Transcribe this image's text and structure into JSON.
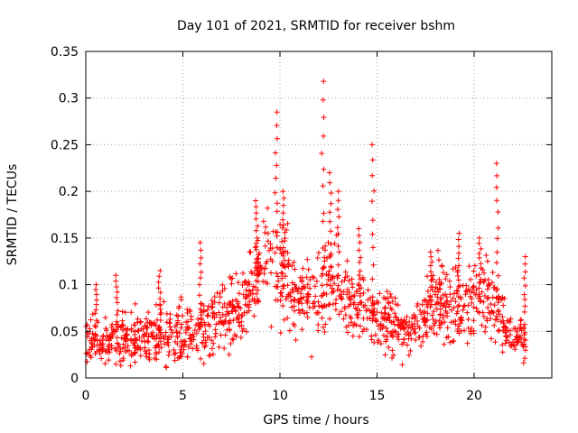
{
  "chart_data": {
    "type": "scatter",
    "title": "Day 101 of 2021, SRMTID for receiver bshm",
    "xlabel": "GPS time / hours",
    "ylabel": "SRMTID / TECUs",
    "xlim": [
      0,
      24
    ],
    "ylim": [
      0,
      0.35
    ],
    "grid": true,
    "x_ticks": [
      0,
      5,
      10,
      15,
      20
    ],
    "x_tick_labels": [
      "0",
      "5",
      "10",
      "15",
      "20"
    ],
    "y_ticks": [
      0,
      0.05,
      0.1,
      0.15,
      0.2,
      0.25,
      0.3,
      0.35
    ],
    "y_tick_labels": [
      "0",
      "0.05",
      "0.1",
      "0.15",
      "0.2",
      "0.25",
      "0.3",
      "0.35"
    ],
    "marker": "+",
    "color": "#ff0000",
    "envelope": {
      "hours": [
        0,
        1,
        2,
        3,
        4,
        5,
        6,
        7,
        8,
        8.5,
        9,
        9.5,
        10,
        10.5,
        11,
        11.5,
        12,
        12.5,
        13,
        13.5,
        14,
        14.5,
        15,
        15.5,
        16,
        16.5,
        17,
        17.5,
        18,
        18.5,
        19,
        19.5,
        20,
        20.5,
        21,
        21.5,
        22,
        22.7
      ],
      "typical": [
        0.04,
        0.038,
        0.04,
        0.045,
        0.045,
        0.05,
        0.055,
        0.06,
        0.08,
        0.1,
        0.12,
        0.13,
        0.12,
        0.1,
        0.09,
        0.085,
        0.09,
        0.1,
        0.09,
        0.08,
        0.075,
        0.07,
        0.065,
        0.06,
        0.055,
        0.05,
        0.055,
        0.07,
        0.08,
        0.08,
        0.075,
        0.075,
        0.08,
        0.09,
        0.085,
        0.06,
        0.04,
        0.04
      ],
      "spread": [
        0.018,
        0.018,
        0.02,
        0.022,
        0.024,
        0.025,
        0.025,
        0.028,
        0.03,
        0.035,
        0.04,
        0.045,
        0.045,
        0.04,
        0.035,
        0.035,
        0.04,
        0.04,
        0.035,
        0.03,
        0.03,
        0.028,
        0.026,
        0.025,
        0.024,
        0.022,
        0.025,
        0.028,
        0.03,
        0.03,
        0.03,
        0.03,
        0.03,
        0.03,
        0.03,
        0.025,
        0.018,
        0.018
      ]
    },
    "peaks": [
      {
        "x": 0.5,
        "y": 0.1
      },
      {
        "x": 1.6,
        "y": 0.11
      },
      {
        "x": 3.8,
        "y": 0.115
      },
      {
        "x": 5.9,
        "y": 0.145
      },
      {
        "x": 8.8,
        "y": 0.19
      },
      {
        "x": 9.8,
        "y": 0.285
      },
      {
        "x": 10.2,
        "y": 0.2
      },
      {
        "x": 12.2,
        "y": 0.318
      },
      {
        "x": 12.6,
        "y": 0.22
      },
      {
        "x": 13.0,
        "y": 0.2
      },
      {
        "x": 14.1,
        "y": 0.16
      },
      {
        "x": 14.8,
        "y": 0.25
      },
      {
        "x": 17.8,
        "y": 0.135
      },
      {
        "x": 19.2,
        "y": 0.155
      },
      {
        "x": 20.3,
        "y": 0.15
      },
      {
        "x": 21.2,
        "y": 0.23
      },
      {
        "x": 22.6,
        "y": 0.13
      }
    ]
  }
}
